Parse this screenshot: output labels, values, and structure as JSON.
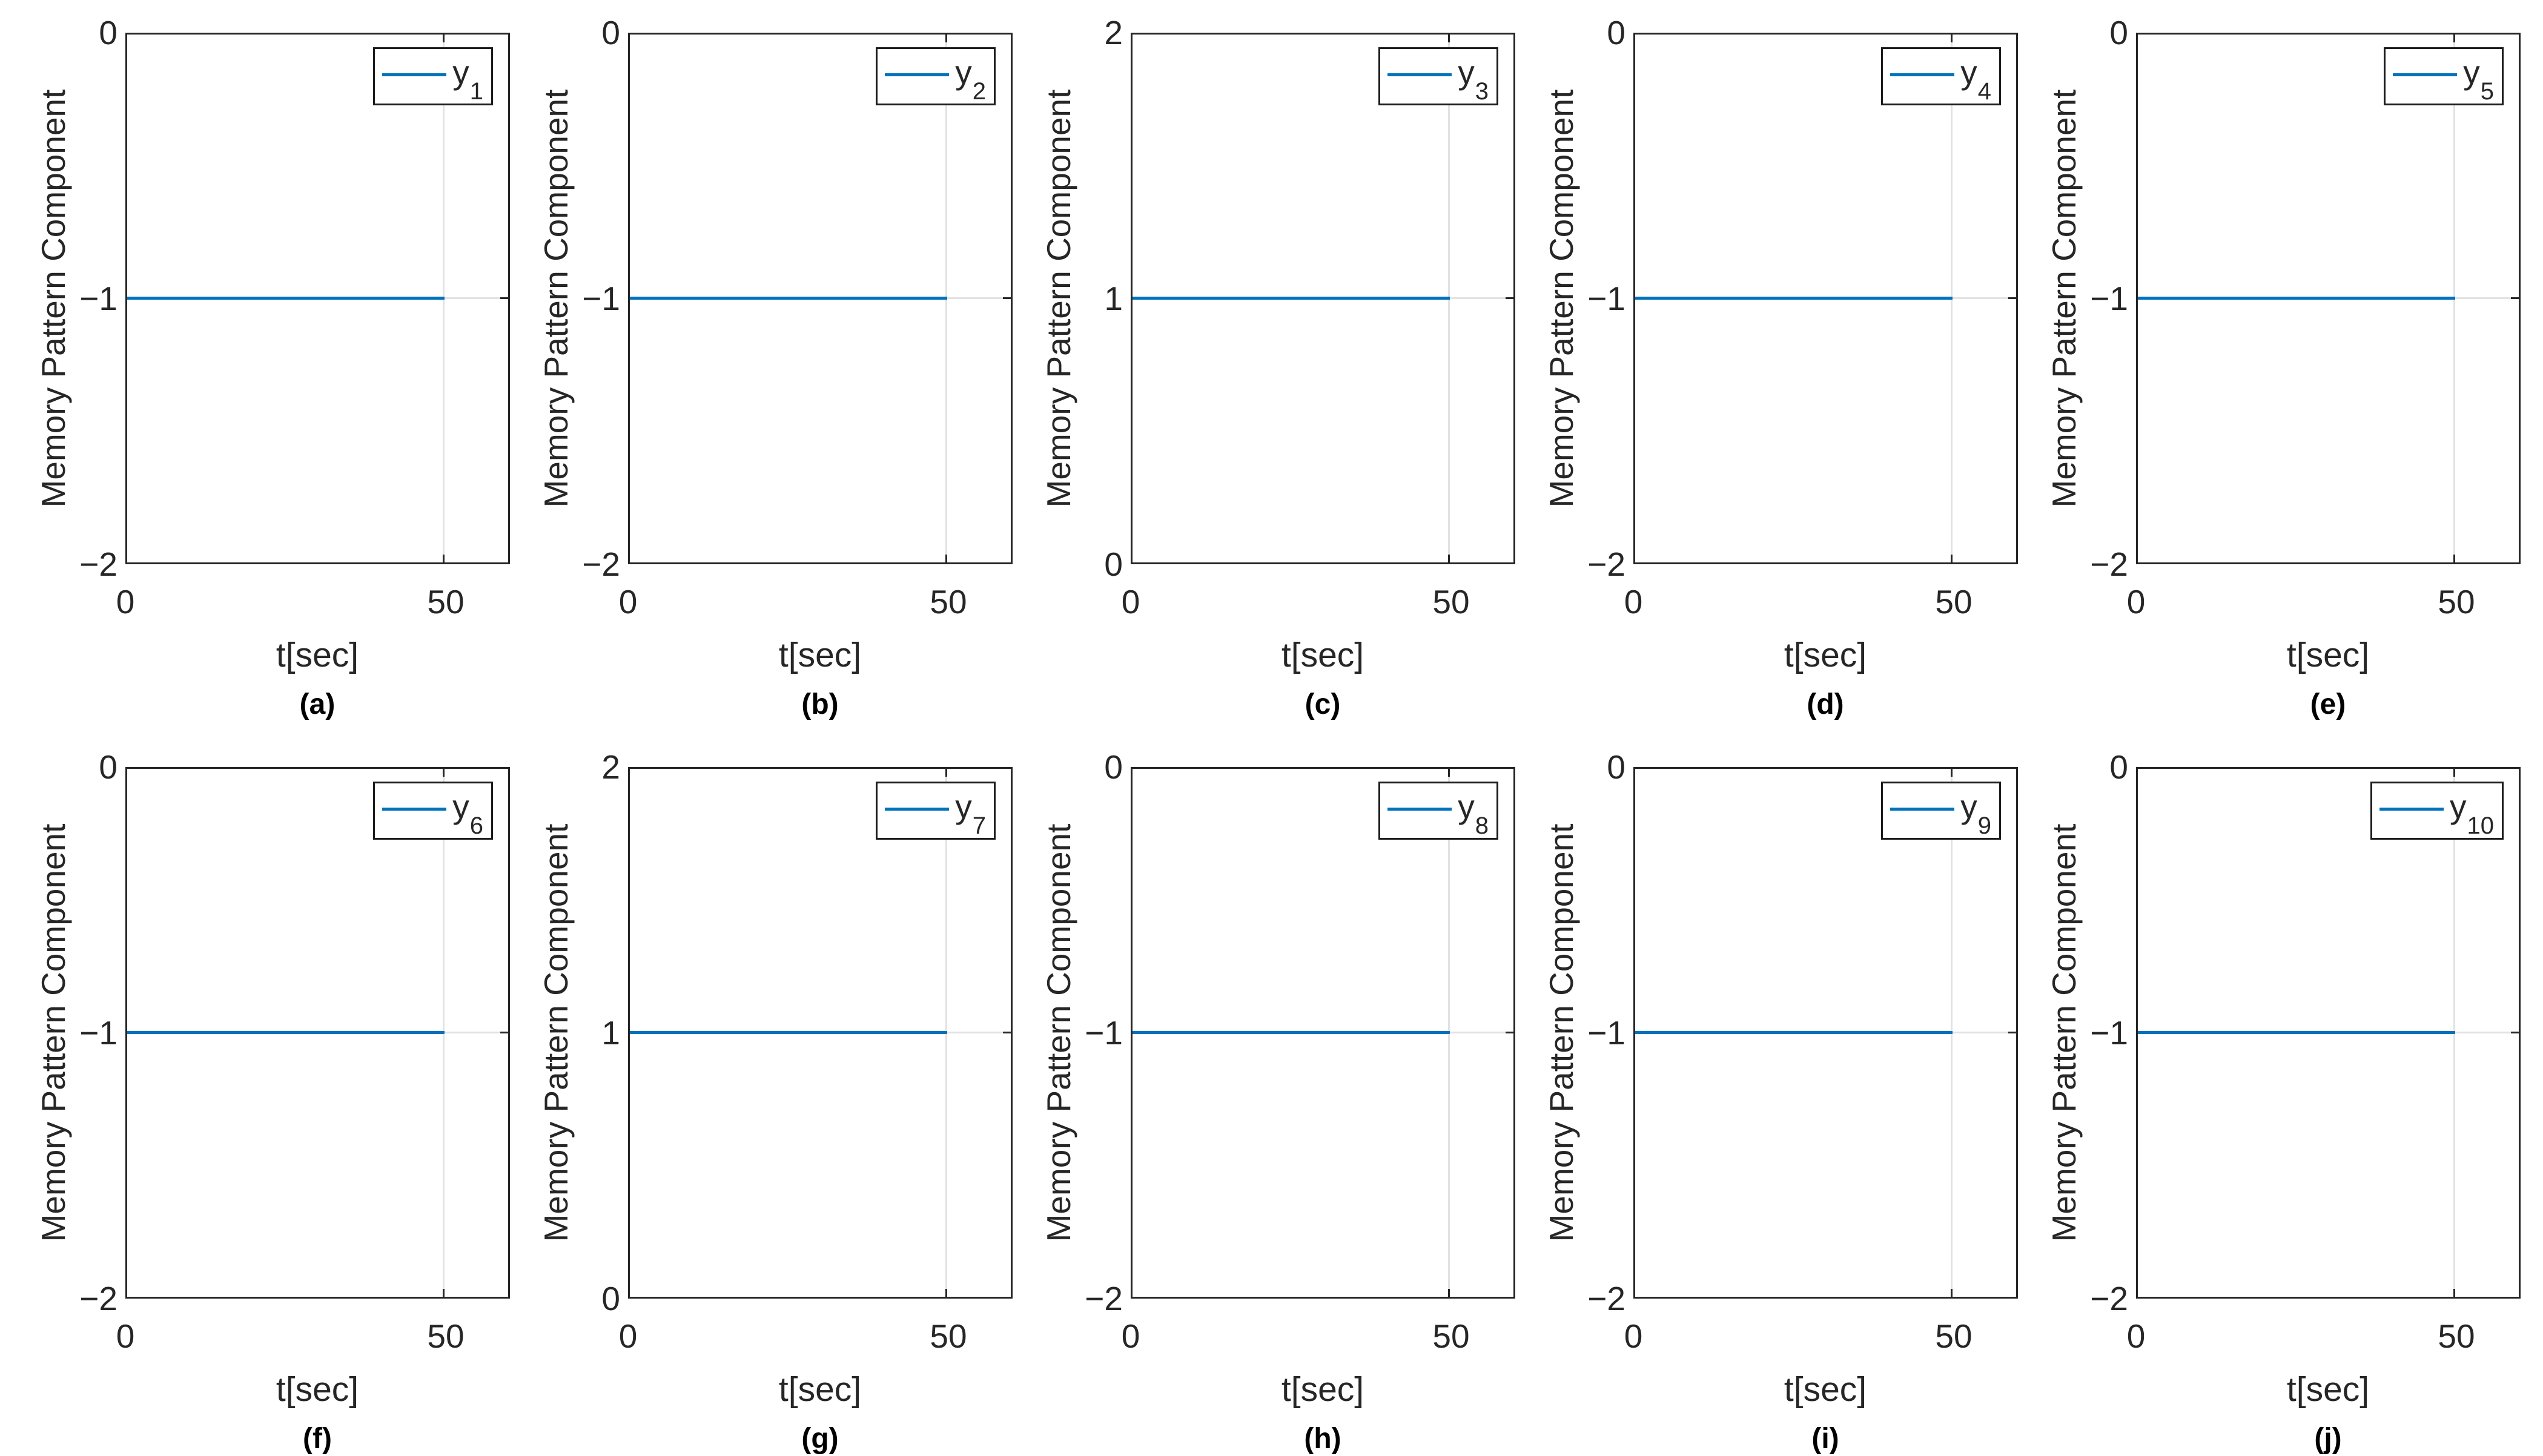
{
  "figure": {
    "xlabel": "t[sec]",
    "ylabel": "Memory Pattern Component",
    "xtick_labels": [
      "0",
      "50"
    ],
    "colors": {
      "line": "#0072BD",
      "grid": "#e2e2e2",
      "axis": "#262626",
      "legend_border": "#1c1c1c",
      "background": "#ffffff"
    }
  },
  "subplots": [
    {
      "caption": "(a)",
      "legend_base": "y",
      "legend_sub": "1",
      "yticks": [
        "0",
        "−1",
        "−2"
      ],
      "value": -1
    },
    {
      "caption": "(b)",
      "legend_base": "y",
      "legend_sub": "2",
      "yticks": [
        "0",
        "−1",
        "−2"
      ],
      "value": -1
    },
    {
      "caption": "(c)",
      "legend_base": "y",
      "legend_sub": "3",
      "yticks": [
        "2",
        "1",
        "0"
      ],
      "value": 1
    },
    {
      "caption": "(d)",
      "legend_base": "y",
      "legend_sub": "4",
      "yticks": [
        "0",
        "−1",
        "−2"
      ],
      "value": -1
    },
    {
      "caption": "(e)",
      "legend_base": "y",
      "legend_sub": "5",
      "yticks": [
        "0",
        "−1",
        "−2"
      ],
      "value": -1
    },
    {
      "caption": "(f)",
      "legend_base": "y",
      "legend_sub": "6",
      "yticks": [
        "0",
        "−1",
        "−2"
      ],
      "value": -1
    },
    {
      "caption": "(g)",
      "legend_base": "y",
      "legend_sub": "7",
      "yticks": [
        "2",
        "1",
        "0"
      ],
      "value": 1
    },
    {
      "caption": "(h)",
      "legend_base": "y",
      "legend_sub": "8",
      "yticks": [
        "0",
        "−1",
        "−2"
      ],
      "value": -1
    },
    {
      "caption": "(i)",
      "legend_base": "y",
      "legend_sub": "9",
      "yticks": [
        "0",
        "−1",
        "−2"
      ],
      "value": -1
    },
    {
      "caption": "(j)",
      "legend_base": "y",
      "legend_sub": "10",
      "yticks": [
        "0",
        "−1",
        "−2"
      ],
      "value": -1
    }
  ],
  "chart_data": [
    {
      "type": "line",
      "subplot": "(a)",
      "series": [
        {
          "name": "y_1",
          "x": [
            0,
            50
          ],
          "y": [
            -1,
            -1
          ]
        }
      ],
      "title": "",
      "xlabel": "t[sec]",
      "ylabel": "Memory Pattern Component",
      "xlim": [
        0,
        60
      ],
      "ylim": [
        -2,
        0
      ],
      "xticks": [
        0,
        50
      ],
      "yticks": [
        0,
        -1,
        -2
      ],
      "grid": true,
      "legend_position": "northeast",
      "line_color": "#0072BD"
    },
    {
      "type": "line",
      "subplot": "(b)",
      "series": [
        {
          "name": "y_2",
          "x": [
            0,
            50
          ],
          "y": [
            -1,
            -1
          ]
        }
      ],
      "title": "",
      "xlabel": "t[sec]",
      "ylabel": "Memory Pattern Component",
      "xlim": [
        0,
        60
      ],
      "ylim": [
        -2,
        0
      ],
      "xticks": [
        0,
        50
      ],
      "yticks": [
        0,
        -1,
        -2
      ],
      "grid": true,
      "legend_position": "northeast",
      "line_color": "#0072BD"
    },
    {
      "type": "line",
      "subplot": "(c)",
      "series": [
        {
          "name": "y_3",
          "x": [
            0,
            50
          ],
          "y": [
            1,
            1
          ]
        }
      ],
      "title": "",
      "xlabel": "t[sec]",
      "ylabel": "Memory Pattern Component",
      "xlim": [
        0,
        60
      ],
      "ylim": [
        0,
        2
      ],
      "xticks": [
        0,
        50
      ],
      "yticks": [
        0,
        1,
        2
      ],
      "grid": true,
      "legend_position": "northeast",
      "line_color": "#0072BD"
    },
    {
      "type": "line",
      "subplot": "(d)",
      "series": [
        {
          "name": "y_4",
          "x": [
            0,
            50
          ],
          "y": [
            -1,
            -1
          ]
        }
      ],
      "title": "",
      "xlabel": "t[sec]",
      "ylabel": "Memory Pattern Component",
      "xlim": [
        0,
        60
      ],
      "ylim": [
        -2,
        0
      ],
      "xticks": [
        0,
        50
      ],
      "yticks": [
        0,
        -1,
        -2
      ],
      "grid": true,
      "legend_position": "northeast",
      "line_color": "#0072BD"
    },
    {
      "type": "line",
      "subplot": "(e)",
      "series": [
        {
          "name": "y_5",
          "x": [
            0,
            50
          ],
          "y": [
            -1,
            -1
          ]
        }
      ],
      "title": "",
      "xlabel": "t[sec]",
      "ylabel": "Memory Pattern Component",
      "xlim": [
        0,
        60
      ],
      "ylim": [
        -2,
        0
      ],
      "xticks": [
        0,
        50
      ],
      "yticks": [
        0,
        -1,
        -2
      ],
      "grid": true,
      "legend_position": "northeast",
      "line_color": "#0072BD"
    },
    {
      "type": "line",
      "subplot": "(f)",
      "series": [
        {
          "name": "y_6",
          "x": [
            0,
            50
          ],
          "y": [
            -1,
            -1
          ]
        }
      ],
      "title": "",
      "xlabel": "t[sec]",
      "ylabel": "Memory Pattern Component",
      "xlim": [
        0,
        60
      ],
      "ylim": [
        -2,
        0
      ],
      "xticks": [
        0,
        50
      ],
      "yticks": [
        0,
        -1,
        -2
      ],
      "grid": true,
      "legend_position": "northeast",
      "line_color": "#0072BD"
    },
    {
      "type": "line",
      "subplot": "(g)",
      "series": [
        {
          "name": "y_7",
          "x": [
            0,
            50
          ],
          "y": [
            1,
            1
          ]
        }
      ],
      "title": "",
      "xlabel": "t[sec]",
      "ylabel": "Memory Pattern Component",
      "xlim": [
        0,
        60
      ],
      "ylim": [
        0,
        2
      ],
      "xticks": [
        0,
        50
      ],
      "yticks": [
        0,
        1,
        2
      ],
      "grid": true,
      "legend_position": "northeast",
      "line_color": "#0072BD"
    },
    {
      "type": "line",
      "subplot": "(h)",
      "series": [
        {
          "name": "y_8",
          "x": [
            0,
            50
          ],
          "y": [
            -1,
            -1
          ]
        }
      ],
      "title": "",
      "xlabel": "t[sec]",
      "ylabel": "Memory Pattern Component",
      "xlim": [
        0,
        60
      ],
      "ylim": [
        -2,
        0
      ],
      "xticks": [
        0,
        50
      ],
      "yticks": [
        0,
        -1,
        -2
      ],
      "grid": true,
      "legend_position": "northeast",
      "line_color": "#0072BD"
    },
    {
      "type": "line",
      "subplot": "(i)",
      "series": [
        {
          "name": "y_9",
          "x": [
            0,
            50
          ],
          "y": [
            -1,
            -1
          ]
        }
      ],
      "title": "",
      "xlabel": "t[sec]",
      "ylabel": "Memory Pattern Component",
      "xlim": [
        0,
        60
      ],
      "ylim": [
        -2,
        0
      ],
      "xticks": [
        0,
        50
      ],
      "yticks": [
        0,
        -1,
        -2
      ],
      "grid": true,
      "legend_position": "northeast",
      "line_color": "#0072BD"
    },
    {
      "type": "line",
      "subplot": "(j)",
      "series": [
        {
          "name": "y_10",
          "x": [
            0,
            50
          ],
          "y": [
            -1,
            -1
          ]
        }
      ],
      "title": "",
      "xlabel": "t[sec]",
      "ylabel": "Memory Pattern Component",
      "xlim": [
        0,
        60
      ],
      "ylim": [
        0,
        -2
      ],
      "xticks": [
        0,
        50
      ],
      "yticks": [
        0,
        -1,
        -2
      ],
      "grid": true,
      "legend_position": "northeast",
      "line_color": "#0072BD"
    }
  ]
}
